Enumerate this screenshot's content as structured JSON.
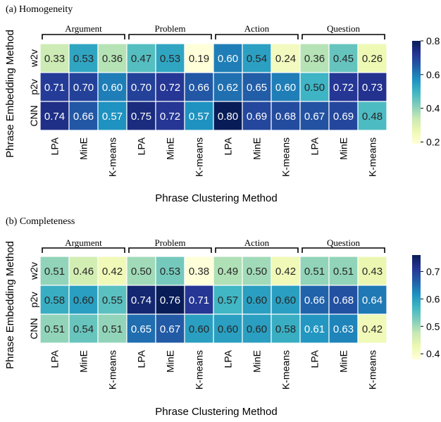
{
  "chart_data": [
    {
      "type": "heatmap",
      "title": "(a) Homogeneity",
      "xlabel": "Phrase Clustering Method",
      "ylabel": "Phrase Embedding Method",
      "groups": [
        "Argument",
        "Problem",
        "Action",
        "Question"
      ],
      "columns": [
        "LPA",
        "MinE",
        "K-means",
        "LPA",
        "MinE",
        "K-means",
        "LPA",
        "MinE",
        "K-means",
        "LPA",
        "MinE",
        "K-means"
      ],
      "rows": [
        "w2v",
        "p2v",
        "CNN"
      ],
      "values": [
        [
          0.33,
          0.53,
          0.36,
          0.47,
          0.53,
          0.19,
          0.6,
          0.54,
          0.24,
          0.36,
          0.45,
          0.26
        ],
        [
          0.71,
          0.7,
          0.6,
          0.7,
          0.72,
          0.66,
          0.62,
          0.65,
          0.6,
          0.5,
          0.72,
          0.73
        ],
        [
          0.74,
          0.66,
          0.57,
          0.75,
          0.72,
          0.57,
          0.8,
          0.69,
          0.68,
          0.67,
          0.69,
          0.48
        ]
      ],
      "colorbar_range": [
        0.19,
        0.8
      ],
      "colorbar_ticks": [
        "0.2",
        "0.4",
        "0.6",
        "0.8"
      ],
      "colormap": "YlGnBu"
    },
    {
      "type": "heatmap",
      "title": "(b) Completeness",
      "xlabel": "Phrase Clustering Method",
      "ylabel": "Phrase Embedding Method",
      "groups": [
        "Argument",
        "Problem",
        "Action",
        "Question"
      ],
      "columns": [
        "LPA",
        "MinE",
        "K-means",
        "LPA",
        "MinE",
        "K-means",
        "LPA",
        "MinE",
        "K-means",
        "LPA",
        "MinE",
        "K-means"
      ],
      "rows": [
        "w2v",
        "p2v",
        "CNN"
      ],
      "values": [
        [
          0.51,
          0.46,
          0.42,
          0.5,
          0.53,
          0.38,
          0.49,
          0.5,
          0.42,
          0.51,
          0.51,
          0.43
        ],
        [
          0.58,
          0.6,
          0.55,
          0.74,
          0.76,
          0.71,
          0.57,
          0.6,
          0.6,
          0.66,
          0.68,
          0.64
        ],
        [
          0.51,
          0.54,
          0.51,
          0.65,
          0.67,
          0.6,
          0.6,
          0.6,
          0.58,
          0.61,
          0.63,
          0.42
        ]
      ],
      "colorbar_range": [
        0.38,
        0.76
      ],
      "colorbar_ticks": [
        "0.4",
        "0.5",
        "0.6",
        "0.7"
      ],
      "colormap": "YlGnBu"
    }
  ]
}
